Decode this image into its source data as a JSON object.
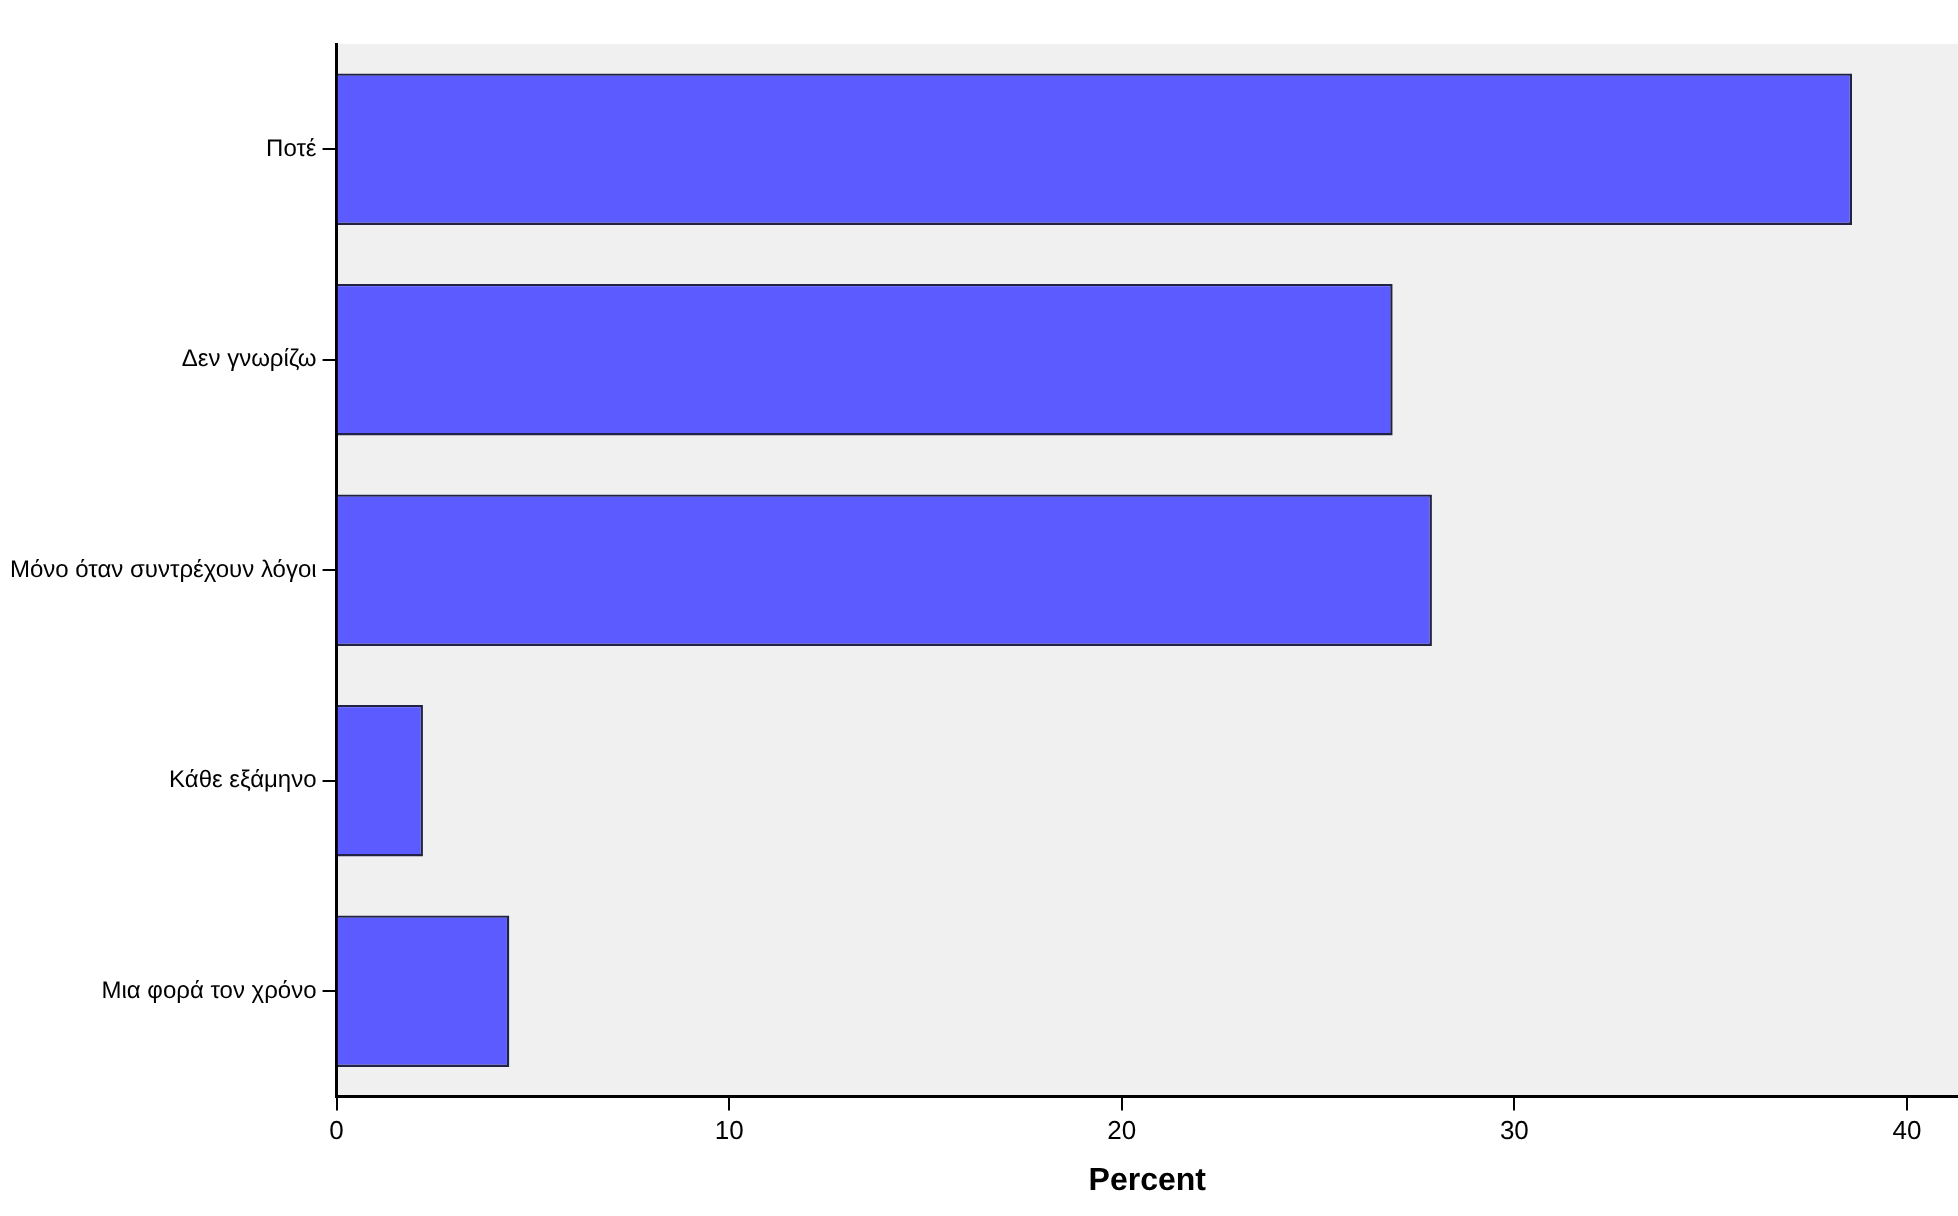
{
  "chart_data": {
    "type": "bar",
    "orientation": "horizontal",
    "xlabel": "Percent",
    "categories": [
      "Ποτέ",
      "Δεν γνωρίζω",
      "Μόνο όταν συντρέχουν λόγοι",
      "Κάθε εξάμηνο",
      "Μια φορά τον χρόνο"
    ],
    "values": [
      38.6,
      26.9,
      27.9,
      2.2,
      4.4
    ],
    "color": "#5b5bff",
    "xlim": [
      0,
      41.3
    ],
    "xticks": [
      0,
      10,
      20,
      30,
      40
    ],
    "grid": false,
    "legend": false
  }
}
